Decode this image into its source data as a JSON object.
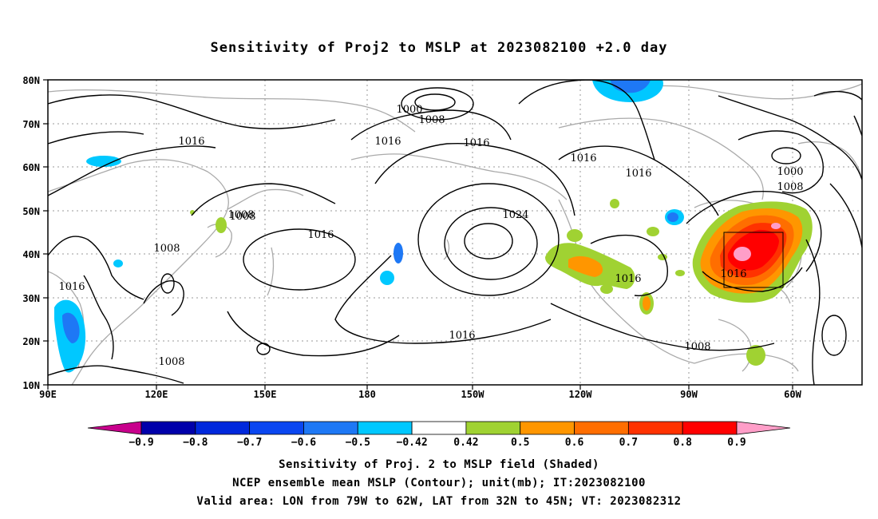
{
  "title": "Sensitivity of Proj2 to MSLP at 2023082100 +2.0 day",
  "lat_labels": [
    "80N",
    "70N",
    "60N",
    "50N",
    "40N",
    "30N",
    "20N",
    "10N"
  ],
  "lon_labels": [
    "90E",
    "120E",
    "150E",
    "180",
    "150W",
    "120W",
    "90W",
    "60W"
  ],
  "isobar_labels": [
    "1000",
    "1008",
    "1016",
    "1016",
    "1016",
    "1016",
    "1016",
    "1024",
    "1016",
    "1008",
    "1008",
    "1016",
    "1008",
    "1016",
    "1008",
    "1016",
    "1000",
    "1008",
    "1008",
    "1016"
  ],
  "colorbar": {
    "labels": [
      "−0.9",
      "−0.8",
      "−0.7",
      "−0.6",
      "−0.5",
      "−0.42",
      "0.42",
      "0.5",
      "0.6",
      "0.7",
      "0.8",
      "0.9"
    ],
    "colors": [
      "#c8008c",
      "#0000aa",
      "#0028dc",
      "#0a46f0",
      "#1e78f5",
      "#00c8ff",
      "#ffffff",
      "#a0d232",
      "#ff9600",
      "#ff6e00",
      "#ff3200",
      "#ff0000",
      "#ff9ec8"
    ]
  },
  "captions": [
    "Sensitivity of Proj. 2 to MSLP field (Shaded)",
    "NCEP ensemble mean MSLP (Contour); unit(mb); IT:2023082100",
    "Valid area: LON from 79W to 62W, LAT from 32N to 45N; VT: 2023082312"
  ]
}
